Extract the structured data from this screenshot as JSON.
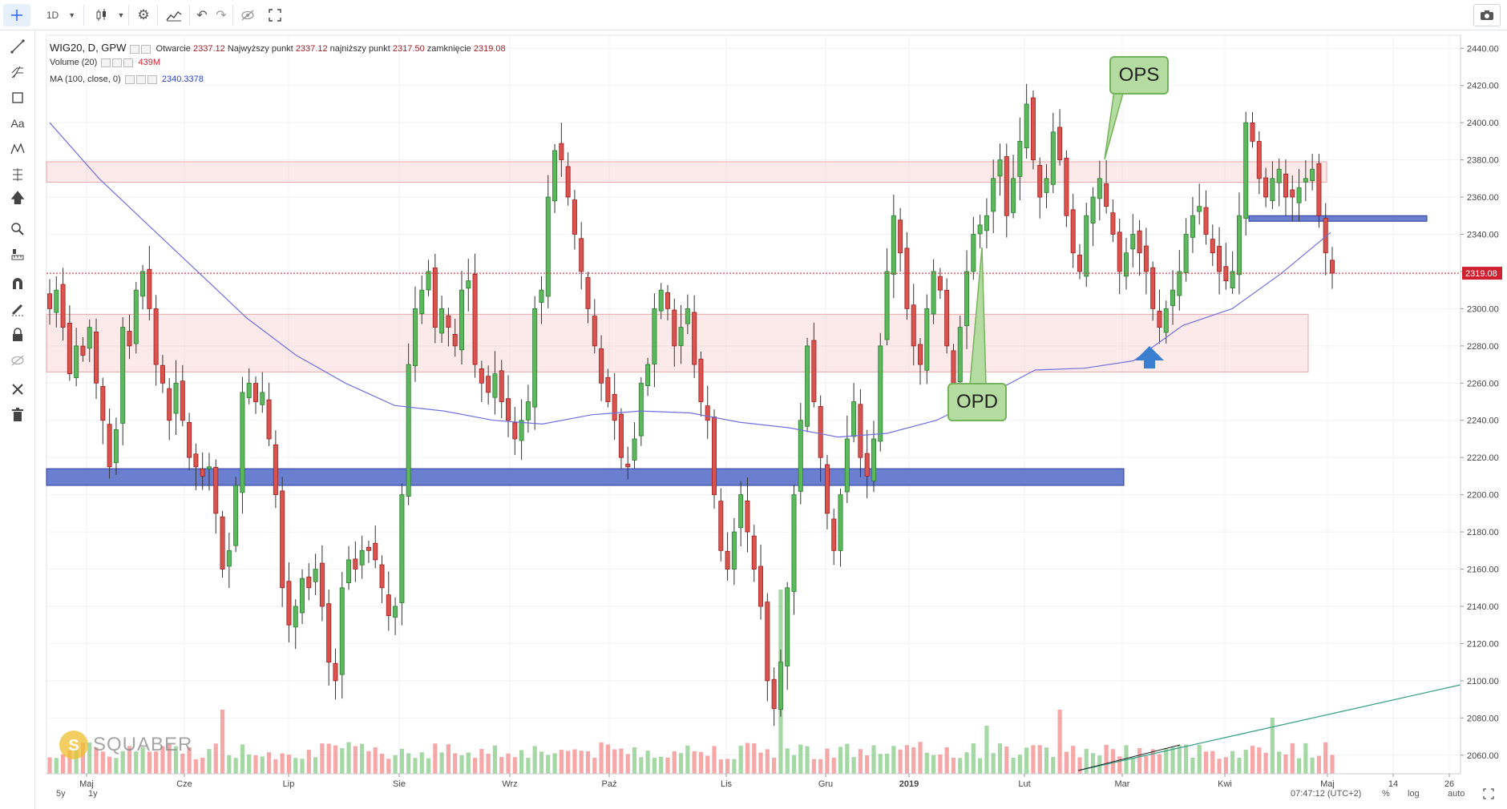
{
  "toolbar": {
    "interval": "1D"
  },
  "legend": {
    "symbol": "WIG20, D, GPW",
    "open_label": "Otwarcie",
    "open": "2337.12",
    "high_label": "Najwyższy punkt",
    "high": "2337.12",
    "low_label": "najniższy punkt",
    "low": "2317.50",
    "close_label": "zamknięcie",
    "close": "2319.08",
    "volume_label": "Volume (20)",
    "volume_value": "439M",
    "ma_label": "MA (100, close, 0)",
    "ma_value": "2340.3378"
  },
  "price_axis": {
    "ticks": [
      "2440.00",
      "2420.00",
      "2400.00",
      "2380.00",
      "2360.00",
      "2340.00",
      "2320.00",
      "2300.00",
      "2280.00",
      "2260.00",
      "2240.00",
      "2220.00",
      "2200.00",
      "2180.00",
      "2160.00",
      "2140.00",
      "2120.00",
      "2100.00",
      "2080.00",
      "2060.00"
    ],
    "last_price_label": "2319.08"
  },
  "time_axis": {
    "labels": [
      "Maj",
      "Cze",
      "Lip",
      "Sie",
      "Wrz",
      "Paź",
      "Lis",
      "Gru",
      "2019",
      "Lut",
      "Mar",
      "Kwi",
      "Maj",
      "14",
      "26"
    ]
  },
  "annotations": {
    "ops": "OPS",
    "opd": "OPD",
    "watermark": "SQUABER"
  },
  "bottom_bar": {
    "range_5y": "5y",
    "range_1y": "1y",
    "clock": "07:47:12 (UTC+2)",
    "percent": "%",
    "log": "log",
    "auto": "auto"
  },
  "colors": {
    "up": "#5cb85c",
    "down": "#d9534f",
    "ma": "#6b6bd6",
    "zone_red": "#fbe3e3",
    "zone_blue": "#6b7fd0",
    "callout": "#b5dca0"
  },
  "chart_data": {
    "type": "candlestick",
    "y_range": [
      2050,
      2447
    ],
    "series_close": [
      2300,
      2310,
      2290,
      2265,
      2280,
      2275,
      2290,
      2260,
      2240,
      2215,
      2235,
      2290,
      2280,
      2310,
      2320,
      2300,
      2270,
      2260,
      2240,
      2260,
      2240,
      2220,
      2215,
      2210,
      2215,
      2190,
      2160,
      2170,
      2205,
      2255,
      2260,
      2250,
      2255,
      2230,
      2200,
      2150,
      2130,
      2140,
      2155,
      2150,
      2160,
      2140,
      2110,
      2100,
      2150,
      2165,
      2160,
      2170,
      2170,
      2165,
      2150,
      2135,
      2140,
      2200,
      2270,
      2300,
      2310,
      2320,
      2290,
      2300,
      2290,
      2280,
      2310,
      2315,
      2270,
      2260,
      2255,
      2265,
      2250,
      2240,
      2230,
      2240,
      2250,
      2300,
      2310,
      2360,
      2385,
      2380,
      2360,
      2340,
      2320,
      2300,
      2280,
      2260,
      2250,
      2240,
      2220,
      2215,
      2230,
      2260,
      2270,
      2300,
      2310,
      2300,
      2280,
      2290,
      2300,
      2270,
      2250,
      2240,
      2200,
      2170,
      2160,
      2180,
      2200,
      2180,
      2160,
      2140,
      2100,
      2085,
      2110,
      2150,
      2200,
      2240,
      2280,
      2250,
      2220,
      2190,
      2170,
      2200,
      2230,
      2250,
      2220,
      2210,
      2230,
      2280,
      2320,
      2350,
      2330,
      2300,
      2280,
      2270,
      2300,
      2320,
      2310,
      2280,
      2260,
      2290,
      2320,
      2340,
      2345,
      2350,
      2370,
      2380,
      2350,
      2370,
      2390,
      2410,
      2380,
      2360,
      2370,
      2395,
      2380,
      2350,
      2330,
      2320,
      2350,
      2360,
      2370,
      2355,
      2340,
      2320,
      2330,
      2340,
      2330,
      2320,
      2300,
      2290,
      2300,
      2310,
      2320,
      2340,
      2350,
      2355,
      2340,
      2330,
      2320,
      2315,
      2320,
      2350,
      2400,
      2390,
      2370,
      2360,
      2370,
      2375,
      2360,
      2360,
      2365,
      2370,
      2375,
      2350,
      2330,
      2319.08
    ],
    "ma_series": [
      2400,
      2370,
      2345,
      2320,
      2295,
      2275,
      2260,
      2248,
      2245,
      2240,
      2238,
      2243,
      2245,
      2244,
      2239,
      2236,
      2231,
      2233,
      2240,
      2253,
      2267,
      2268,
      2272,
      2291,
      2300,
      2319,
      2341
    ],
    "zones": [
      {
        "type": "resistance",
        "from": 2368,
        "to": 2379
      },
      {
        "type": "support",
        "from": 2266,
        "to": 2297
      },
      {
        "type": "support-strong",
        "from": 2205,
        "to": 2214
      },
      {
        "type": "short-band",
        "from": 2347,
        "to": 2350
      }
    ],
    "last_price": 2319.08
  }
}
